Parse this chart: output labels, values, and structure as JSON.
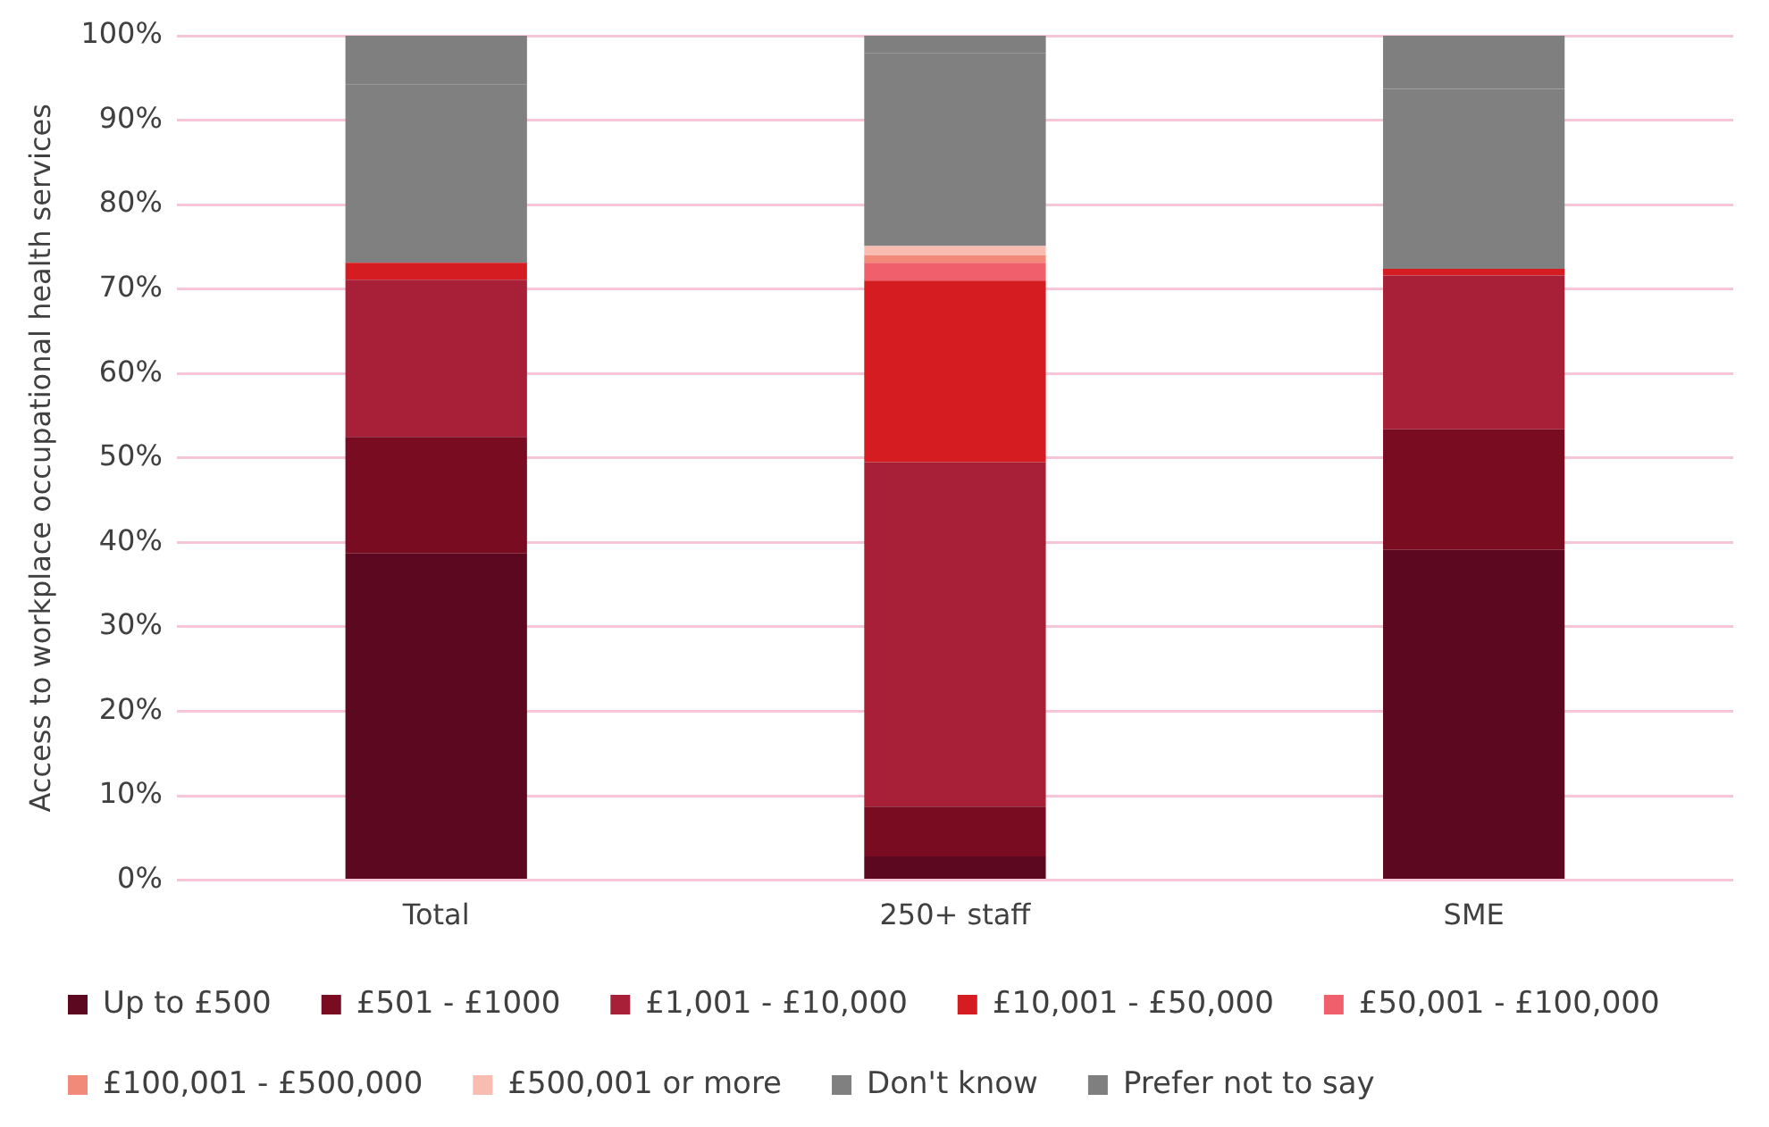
{
  "chart_data": {
    "type": "bar",
    "stacked": true,
    "ylabel": "Access to workplace occupational health services",
    "categories": [
      "Total",
      "250+ staff",
      "SME"
    ],
    "series": [
      {
        "name": "Up to £500",
        "color": "#5c0820",
        "values": [
          38.7,
          2.8,
          39.1
        ]
      },
      {
        "name": "£501 - £1000",
        "color": "#7a0c22",
        "values": [
          13.8,
          5.9,
          14.3
        ]
      },
      {
        "name": "£1,001 - £10,000",
        "color": "#a81f38",
        "values": [
          18.6,
          40.8,
          18.2
        ]
      },
      {
        "name": "£10,001 - £50,000",
        "color": "#d41c21",
        "values": [
          2.0,
          21.5,
          0.8
        ]
      },
      {
        "name": "£50,001 - £100,000",
        "color": "#f0606c",
        "values": [
          0,
          2.1,
          0
        ]
      },
      {
        "name": "£100,001 - £500,000",
        "color": "#f28a7a",
        "values": [
          0,
          0.9,
          0
        ]
      },
      {
        "name": "£500,001 or more",
        "color": "#f9bcb0",
        "values": [
          0,
          1.1,
          0
        ]
      },
      {
        "name": "Don't know",
        "color": "#808080",
        "values": [
          21.1,
          22.8,
          21.3
        ]
      },
      {
        "name": "Prefer not to say",
        "color": "#7f7f7f",
        "values": [
          5.8,
          2.1,
          6.3
        ]
      }
    ],
    "ylim": [
      0,
      100
    ],
    "yticks": [
      {
        "value": 0,
        "label": "0%"
      },
      {
        "value": 10,
        "label": "10%"
      },
      {
        "value": 20,
        "label": "20%"
      },
      {
        "value": 30,
        "label": "30%"
      },
      {
        "value": 40,
        "label": "40%"
      },
      {
        "value": 50,
        "label": "50%"
      },
      {
        "value": 60,
        "label": "60%"
      },
      {
        "value": 70,
        "label": "70%"
      },
      {
        "value": 80,
        "label": "80%"
      },
      {
        "value": 90,
        "label": "90%"
      },
      {
        "value": 100,
        "label": "100%"
      }
    ],
    "grid": "y",
    "legend": "bottom"
  }
}
